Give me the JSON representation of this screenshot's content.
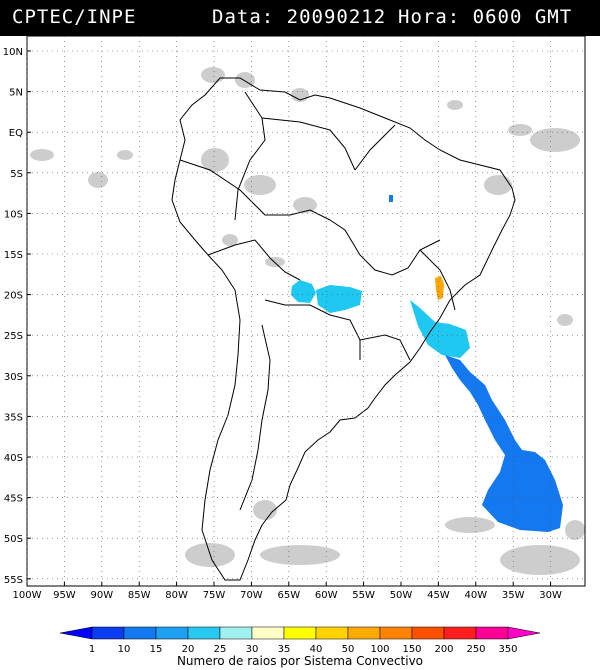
{
  "header": {
    "source": "CPTEC/INPE",
    "date_text": "Data: 20090212",
    "time_text": "Hora: 0600 GMT"
  },
  "map": {
    "lat_labels": [
      "10N",
      "5N",
      "EQ",
      "5S",
      "10S",
      "15S",
      "20S",
      "25S",
      "30S",
      "35S",
      "40S",
      "45S",
      "50S",
      "55S"
    ],
    "lon_labels": [
      "100W",
      "95W",
      "90W",
      "85W",
      "80W",
      "75W",
      "70W",
      "65W",
      "60W",
      "55W",
      "50W",
      "45W",
      "40W",
      "35W",
      "30W"
    ]
  },
  "legend": {
    "title": "Numero de raios por Sistema Convectivo",
    "ticks": [
      "1",
      "10",
      "15",
      "20",
      "25",
      "30",
      "35",
      "40",
      "50",
      "100",
      "150",
      "200",
      "250",
      "350"
    ],
    "colors": [
      "#0000ff",
      "#0a3cf0",
      "#1478f0",
      "#1ea0f0",
      "#28c8f0",
      "#a0f0f0",
      "#ffffc8",
      "#ffff00",
      "#ffd200",
      "#ffaa00",
      "#ff8200",
      "#ff5000",
      "#ff1e1e",
      "#ff0096",
      "#ff00c8"
    ]
  },
  "systems": {
    "colors": {
      "blue": "#1478f0",
      "cyan": "#1ec8f0",
      "orange": "#ffa500",
      "dark_blue": "#0a3cf0",
      "cloud": "#c8c8c8"
    }
  }
}
